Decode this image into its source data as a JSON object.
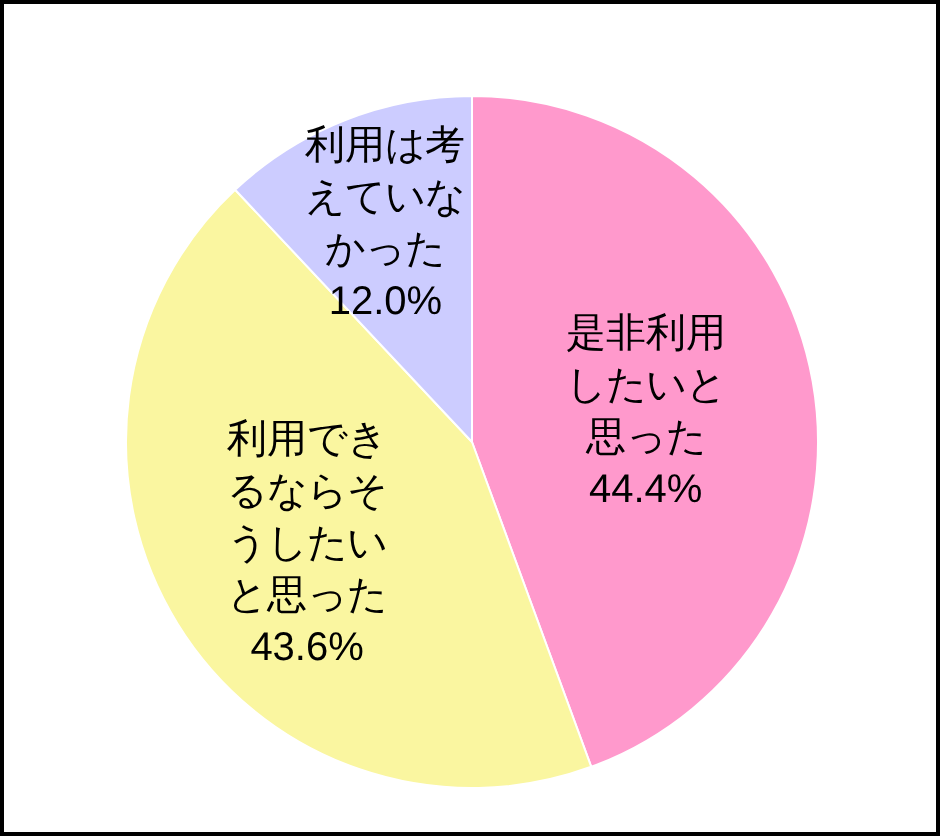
{
  "chart_data": {
    "type": "pie",
    "categories": [
      "是非利用したいと思った",
      "利用できるならそうしたいと思った",
      "利用は考えていなかった"
    ],
    "values": [
      44.4,
      43.6,
      12.0
    ],
    "value_labels": [
      "44.4%",
      "43.6%",
      "12.0%"
    ],
    "colors": [
      "#ff99cc",
      "#faf6a0",
      "#ccccff"
    ]
  }
}
